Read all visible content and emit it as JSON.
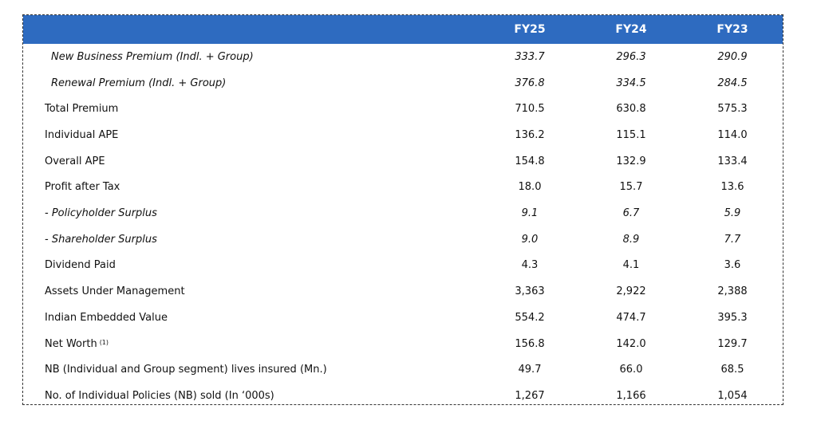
{
  "table": {
    "headers": [
      "",
      "FY25",
      "FY24",
      "FY23"
    ],
    "rows": [
      {
        "label": "New Business Premium (Indl. + Group)",
        "sup": "",
        "values": [
          "333.7",
          "296.3",
          "290.9"
        ],
        "style": "italic indent"
      },
      {
        "label": "Renewal Premium (Indl. + Group)",
        "sup": "",
        "values": [
          "376.8",
          "334.5",
          "284.5"
        ],
        "style": "italic indent"
      },
      {
        "label": "Total Premium",
        "sup": "",
        "values": [
          "710.5",
          "630.8",
          "575.3"
        ],
        "style": ""
      },
      {
        "label": "Individual APE",
        "sup": "",
        "values": [
          "136.2",
          "115.1",
          "114.0"
        ],
        "style": ""
      },
      {
        "label": "Overall APE",
        "sup": "",
        "values": [
          "154.8",
          "132.9",
          "133.4"
        ],
        "style": ""
      },
      {
        "label": "Profit after Tax",
        "sup": "",
        "values": [
          "18.0",
          "15.7",
          "13.6"
        ],
        "style": ""
      },
      {
        "label": "- Policyholder Surplus",
        "sup": "",
        "values": [
          "9.1",
          "6.7",
          "5.9"
        ],
        "style": "italic"
      },
      {
        "label": "- Shareholder Surplus",
        "sup": "",
        "values": [
          "9.0",
          "8.9",
          "7.7"
        ],
        "style": "italic"
      },
      {
        "label": "Dividend Paid",
        "sup": "",
        "values": [
          "4.3",
          "4.1",
          "3.6"
        ],
        "style": ""
      },
      {
        "label": "Assets Under Management",
        "sup": "",
        "values": [
          "3,363",
          "2,922",
          "2,388"
        ],
        "style": ""
      },
      {
        "label": "Indian Embedded Value",
        "sup": "",
        "values": [
          "554.2",
          "474.7",
          "395.3"
        ],
        "style": ""
      },
      {
        "label": "Net Worth",
        "sup": "(1)",
        "values": [
          "156.8",
          "142.0",
          "129.7"
        ],
        "style": ""
      },
      {
        "label": "NB (Individual and Group segment) lives insured (Mn.)",
        "sup": "",
        "values": [
          "49.7",
          "66.0",
          "68.5"
        ],
        "style": ""
      },
      {
        "label": "No. of Individual Policies (NB) sold (In ‘000s)",
        "sup": "",
        "values": [
          "1,267",
          "1,166",
          "1,054"
        ],
        "style": ""
      }
    ]
  }
}
